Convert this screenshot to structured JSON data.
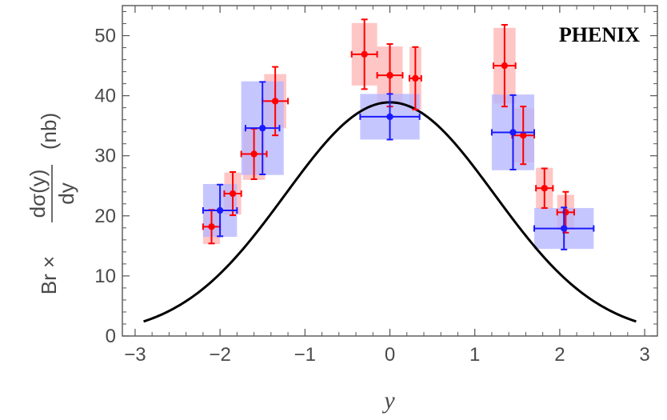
{
  "chart_data": {
    "type": "scatter",
    "xlim": [
      -3.15,
      3.15
    ],
    "ylim": [
      0,
      55
    ],
    "xticks": [
      "−3",
      "−2",
      "−1",
      "0",
      "1",
      "2",
      "3"
    ],
    "xtick_values": [
      -3,
      -2,
      -1,
      0,
      1,
      2,
      3
    ],
    "yticks": [
      "0",
      "10",
      "20",
      "30",
      "40",
      "50"
    ],
    "ytick_values": [
      0,
      10,
      20,
      30,
      40,
      50
    ],
    "xlabel": "y",
    "ylabel": {
      "prefix": "Br ×",
      "numerator": "dσ(y)",
      "denominator": "dy",
      "unit": "(nb)"
    },
    "annotation": "PHENIX",
    "colors": {
      "red": "#ff0000",
      "red_box": "#ffb3b3",
      "blue": "#1a1aff",
      "blue_box": "#b3b3ff",
      "curve": "#000000"
    },
    "series": [
      {
        "color": "red",
        "points": [
          {
            "x": -2.1,
            "y": 18.2,
            "xerr": 0.1,
            "yerr": 2.8,
            "sx": 0.1,
            "sy": 2.9
          },
          {
            "x": -1.85,
            "y": 23.7,
            "xerr": 0.1,
            "yerr": 3.6,
            "sx": 0.1,
            "sy": 3.5
          },
          {
            "x": -1.6,
            "y": 30.3,
            "xerr": 0.15,
            "yerr": 4.2,
            "sx": 0.13,
            "sy": 4.3
          },
          {
            "x": -1.35,
            "y": 39.1,
            "xerr": 0.15,
            "yerr": 5.7,
            "sx": 0.13,
            "sy": 4.5
          },
          {
            "x": -0.3,
            "y": 46.9,
            "xerr": 0.15,
            "yerr": 5.8,
            "sx": 0.15,
            "sy": 5.2
          },
          {
            "x": 0.0,
            "y": 43.4,
            "xerr": 0.15,
            "yerr": 5.2,
            "sx": 0.15,
            "sy": 4.8
          },
          {
            "x": 0.3,
            "y": 42.9,
            "xerr": 0.07,
            "yerr": 5.2,
            "sx": 0.07,
            "sy": 5.2
          },
          {
            "x": 1.35,
            "y": 45.0,
            "xerr": 0.13,
            "yerr": 6.8,
            "sx": 0.13,
            "sy": 6.3
          },
          {
            "x": 1.57,
            "y": 33.4,
            "xerr": 0.13,
            "yerr": 4.8,
            "sx": 0.13,
            "sy": 4.5
          },
          {
            "x": 1.82,
            "y": 24.6,
            "xerr": 0.1,
            "yerr": 3.3,
            "sx": 0.1,
            "sy": 3.4
          },
          {
            "x": 2.07,
            "y": 20.6,
            "xerr": 0.1,
            "yerr": 3.4,
            "sx": 0.1,
            "sy": 2.9
          }
        ]
      },
      {
        "color": "blue",
        "points": [
          {
            "x": -2.0,
            "y": 20.9,
            "xerr": 0.2,
            "yerr": 4.3,
            "sx": 0.2,
            "sy": 4.4
          },
          {
            "x": -1.5,
            "y": 34.6,
            "xerr": 0.2,
            "yerr": 7.7,
            "sx": 0.25,
            "sy": 7.8
          },
          {
            "x": 0.0,
            "y": 36.5,
            "xerr": 0.35,
            "yerr": 3.8,
            "sx": 0.35,
            "sy": 3.8
          },
          {
            "x": 1.45,
            "y": 33.9,
            "xerr": 0.25,
            "yerr": 6.2,
            "sx": 0.25,
            "sy": 6.3
          },
          {
            "x": 2.05,
            "y": 17.9,
            "xerr": 0.35,
            "yerr": 3.5,
            "sx": 0.35,
            "sy": 3.4
          }
        ]
      }
    ],
    "curve": {
      "amplitude": 38.9,
      "sigma": 1.23,
      "x_range": [
        -2.9,
        2.9
      ]
    }
  }
}
